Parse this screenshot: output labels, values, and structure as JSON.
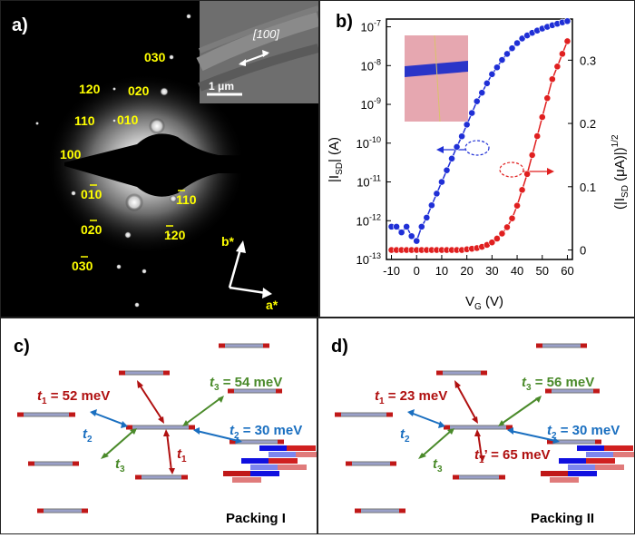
{
  "panel_a": {
    "label": "a)",
    "inset_direction": "[100]",
    "scale_bar": "1 μm",
    "spots": {
      "s030": "030",
      "s120": "120",
      "s020": "020",
      "s110": "110",
      "s010": "010",
      "s100": "100",
      "s0m10": "010",
      "sm110": "110",
      "s0m20": "020",
      "sm120": "120",
      "s0m30": "030"
    },
    "axis_b": "b*",
    "axis_a": "a*",
    "label_color": "#ffff00"
  },
  "panel_b": {
    "label": "b)",
    "xlabel_main": "V",
    "xlabel_sub": "G",
    "xlabel_unit": " (V)",
    "ylabel_left": "|I",
    "ylabel_left_sub": "SD",
    "ylabel_left_unit": "| (A)",
    "ylabel_right": "(|I",
    "ylabel_right_sub": "SD",
    "ylabel_right_unit": " (μA)|)",
    "ylabel_right_sup": "1/2",
    "xticks": [
      "-10",
      "0",
      "10",
      "20",
      "30",
      "40",
      "50",
      "60"
    ],
    "yticks_left_exp": [
      "-7",
      "-8",
      "-9",
      "-10",
      "-11",
      "-12",
      "-13"
    ],
    "yticks_left_base": "10",
    "yticks_right": [
      "0.3",
      "0.2",
      "0.1",
      "0"
    ]
  },
  "chart_data": {
    "type": "line",
    "title": "",
    "xlabel": "V_G (V)",
    "ylabel_left": "|I_SD| (A)",
    "ylabel_right": "(|I_SD (μA)|)^1/2",
    "xlim": [
      -12,
      62
    ],
    "ylim_left_log10": [
      -13,
      -6.8
    ],
    "ylim_right": [
      -0.015,
      0.365
    ],
    "series": [
      {
        "axis": "left-log",
        "color": "#1f2fd6",
        "x": [
          -10,
          -8,
          -6,
          -4,
          -2,
          0,
          2,
          4,
          6,
          8,
          10,
          12,
          14,
          16,
          18,
          20,
          22,
          24,
          26,
          28,
          30,
          32,
          34,
          36,
          38,
          40,
          42,
          44,
          46,
          48,
          50,
          52,
          54,
          56,
          58,
          60
        ],
        "y": [
          7e-13,
          7e-13,
          5e-13,
          7e-13,
          4e-13,
          3e-13,
          7e-13,
          1.2e-12,
          2.5e-12,
          5e-12,
          1e-11,
          2e-11,
          4e-11,
          8e-11,
          1.5e-10,
          3e-10,
          6e-10,
          1.2e-09,
          2e-09,
          3.5e-09,
          6e-09,
          9e-09,
          1.4e-08,
          2e-08,
          2.8e-08,
          3.8e-08,
          5e-08,
          6e-08,
          7e-08,
          8e-08,
          9e-08,
          1e-07,
          1.1e-07,
          1.2e-07,
          1.3e-07,
          1.4e-07
        ]
      },
      {
        "axis": "right-linear",
        "color": "#e01f1f",
        "x": [
          -10,
          -8,
          -6,
          -4,
          -2,
          0,
          2,
          4,
          6,
          8,
          10,
          12,
          14,
          16,
          18,
          20,
          22,
          24,
          26,
          28,
          30,
          32,
          34,
          36,
          38,
          40,
          42,
          44,
          46,
          48,
          50,
          52,
          54,
          56,
          58,
          60
        ],
        "y": [
          0,
          0,
          0,
          0,
          0,
          0,
          0,
          0,
          0,
          0,
          0,
          0,
          0,
          0,
          0,
          0.001,
          0.002,
          0.003,
          0.005,
          0.008,
          0.012,
          0.018,
          0.026,
          0.036,
          0.05,
          0.07,
          0.095,
          0.12,
          0.15,
          0.18,
          0.21,
          0.24,
          0.27,
          0.29,
          0.31,
          0.33
        ]
      }
    ]
  },
  "panel_c": {
    "label": "c)",
    "t1": "t",
    "t1_sub": "1",
    "t1_value": " = 52 meV",
    "t2": "t",
    "t2_sub": "2",
    "t2_value": " = 30 meV",
    "t3": "t",
    "t3_sub": "3",
    "t3_value": " = 54 meV",
    "t1_short": "t",
    "t1_short_sub": "1",
    "t2_short": "t",
    "t2_short_sub": "2",
    "t3_short": "t",
    "t3_short_sub": "3",
    "packing": "Packing I"
  },
  "panel_d": {
    "label": "d)",
    "t1": "t",
    "t1_sub": "1",
    "t1_value": " = 23 meV",
    "t1p": "t",
    "t1p_sub": "1",
    "t1p_prime": "’",
    "t1p_value": " = 65 meV",
    "t2": "t",
    "t2_sub": "2",
    "t2_value": " = 30 meV",
    "t3": "t",
    "t3_sub": "3",
    "t3_value": " = 56 meV",
    "t2_short": "t",
    "t2_short_sub": "2",
    "t3_short": "t",
    "t3_short_sub": "3",
    "packing": "Packing II"
  },
  "colors": {
    "red": "#b01010",
    "blue": "#1a6fc0",
    "green": "#4a8a2a",
    "yellow": "#ffff00"
  }
}
